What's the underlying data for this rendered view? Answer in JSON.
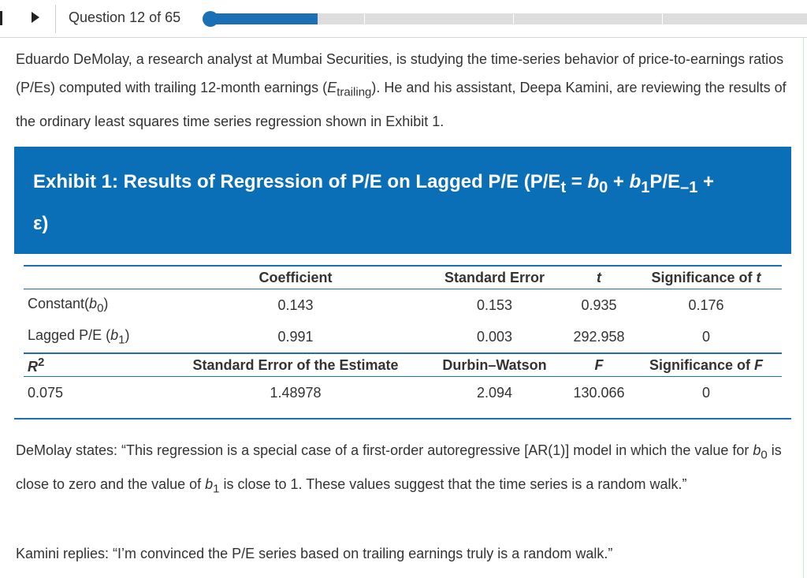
{
  "header": {
    "question_word": "Question",
    "current": 12,
    "of_word": "of",
    "total": 65
  },
  "intro": {
    "parts": [
      "Eduardo DeMolay, a research analyst at Mumbai Securities, is studying the time-series behavior of price-to-earnings ratios (P/Es) computed with trailing 12-month earnings (",
      "E",
      "trailing",
      "). He and his assistant, Deepa Kamini, are reviewing the results of the ordinary least squares time series regression shown in Exhibit 1."
    ]
  },
  "exhibit": {
    "title_parts": [
      "Exhibit 1: Results of Regression of P/E on Lagged P/E (P/E",
      "t",
      " = ",
      "b",
      "0",
      " + ",
      "b",
      "1",
      "P/E",
      "–1",
      " + ε)"
    ],
    "header_1": {
      "coefficient": "Coefficient",
      "standard_error": "Standard Error",
      "t": "t",
      "significance": [
        "Significance of ",
        "t"
      ]
    },
    "rows": [
      {
        "label": [
          "Constant(",
          "b",
          "0",
          ")"
        ],
        "values": [
          0.143,
          0.153,
          0.935,
          0.176
        ]
      },
      {
        "label": [
          "Lagged P/E (",
          "b",
          "1",
          ")"
        ],
        "values": [
          0.991,
          0.003,
          292.958,
          0
        ]
      }
    ],
    "header_2": {
      "r_squared": [
        "R",
        "2"
      ],
      "see": "Standard Error of the Estimate",
      "durbin_watson": "Durbin–Watson",
      "f": "F",
      "significance": [
        "Significance of ",
        "F"
      ]
    },
    "row_2": {
      "values": [
        0.075,
        1.48978,
        2.094,
        130.066,
        0
      ]
    }
  },
  "statement": {
    "parts": [
      "DeMolay states: “This regression is a special case of a first-order autoregressive [AR(1)] model in which the value for ",
      "b",
      "0",
      " is close to zero and the value of ",
      "b",
      "1",
      " is close to 1. These values suggest that the time series is a random walk.”"
    ]
  },
  "reply": "Kamini replies: “I’m convinced the P/E series based on trailing earnings truly is a random walk.”"
}
